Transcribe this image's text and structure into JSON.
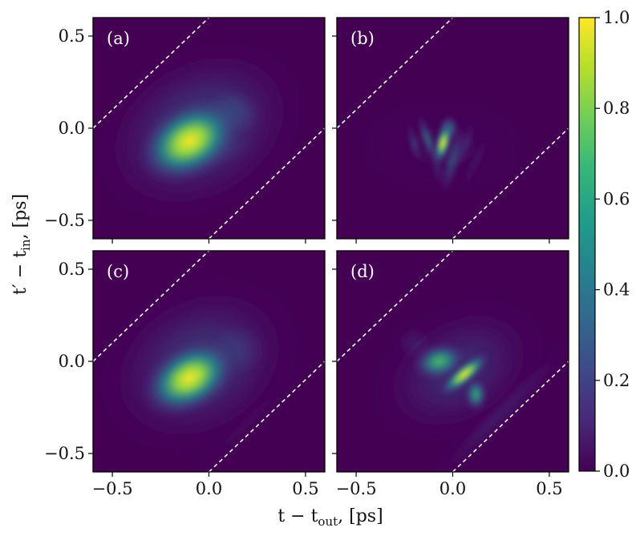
{
  "chart_data": {
    "type": "heatmap",
    "colormap": "viridis",
    "colors": {
      "background": "#440154",
      "viridis_stops": [
        "#440154",
        "#482878",
        "#3e4989",
        "#31688e",
        "#26828e",
        "#1f9e89",
        "#35b779",
        "#6ece58",
        "#b5de2b",
        "#fde725"
      ]
    },
    "xlabel": "t − t",
    "xlabel_sub": "out",
    "xlabel_unit": ", [ps]",
    "ylabel": "t′ − t",
    "ylabel_sub": "in",
    "ylabel_unit": ", [ps]",
    "xlim": [
      -0.6,
      0.6
    ],
    "ylim": [
      -0.6,
      0.6
    ],
    "x_ticks": [
      -0.5,
      0.0,
      0.5
    ],
    "x_tick_labels": [
      "−0.5",
      "0.0",
      "0.5"
    ],
    "y_ticks": [
      0.5,
      0.0,
      -0.5
    ],
    "y_tick_labels": [
      "0.5",
      "0.0",
      "−0.5"
    ],
    "colorbar": {
      "range": [
        0.0,
        1.0
      ],
      "ticks": [
        0.0,
        0.2,
        0.4,
        0.6,
        0.8,
        1.0
      ],
      "tick_labels": [
        "0.0",
        "0.2",
        "0.4",
        "0.6",
        "0.8",
        "1.0"
      ]
    },
    "dashed_lines": [
      {
        "x1": -0.6,
        "y1": 0.0,
        "x2": 0.0,
        "y2": 0.6
      },
      {
        "x1": 0.0,
        "y1": -0.6,
        "x2": 0.6,
        "y2": 0.0
      }
    ],
    "panels": [
      {
        "label": "(a)",
        "blobs": [
          {
            "x": -0.1,
            "y": -0.07,
            "sx": 0.14,
            "sy": 0.1,
            "angle": -30,
            "amp": 1.0
          },
          {
            "x": -0.05,
            "y": -0.01,
            "sx": 0.26,
            "sy": 0.2,
            "angle": -30,
            "amp": 0.45
          },
          {
            "x": 0.12,
            "y": 0.08,
            "sx": 0.08,
            "sy": 0.07,
            "angle": 0,
            "amp": 0.4
          },
          {
            "x": 0.06,
            "y": -0.12,
            "sx": 0.1,
            "sy": 0.05,
            "angle": -20,
            "amp": 0.25
          }
        ]
      },
      {
        "label": "(b)",
        "blobs": [
          {
            "x": -0.05,
            "y": -0.08,
            "sx": 0.02,
            "sy": 0.06,
            "angle": 15,
            "amp": 1.0
          },
          {
            "x": -0.02,
            "y": 0.0,
            "sx": 0.025,
            "sy": 0.035,
            "angle": 0,
            "amp": 0.6
          },
          {
            "x": -0.13,
            "y": -0.06,
            "sx": 0.015,
            "sy": 0.07,
            "angle": -20,
            "amp": 0.55
          },
          {
            "x": 0.0,
            "y": -0.17,
            "sx": 0.02,
            "sy": 0.1,
            "angle": 15,
            "amp": 0.45
          },
          {
            "x": -0.2,
            "y": -0.08,
            "sx": 0.013,
            "sy": 0.06,
            "angle": -15,
            "amp": 0.38
          },
          {
            "x": 0.06,
            "y": -0.1,
            "sx": 0.015,
            "sy": 0.08,
            "angle": 20,
            "amp": 0.32
          },
          {
            "x": -0.08,
            "y": -0.2,
            "sx": 0.015,
            "sy": 0.07,
            "angle": -10,
            "amp": 0.3
          },
          {
            "x": 0.12,
            "y": -0.18,
            "sx": 0.012,
            "sy": 0.09,
            "angle": 25,
            "amp": 0.22
          },
          {
            "x": -0.05,
            "y": -0.1,
            "sx": 0.2,
            "sy": 0.12,
            "angle": 0,
            "amp": 0.12
          }
        ]
      },
      {
        "label": "(c)",
        "blobs": [
          {
            "x": -0.1,
            "y": -0.09,
            "sx": 0.13,
            "sy": 0.09,
            "angle": -30,
            "amp": 1.0
          },
          {
            "x": -0.05,
            "y": -0.02,
            "sx": 0.25,
            "sy": 0.2,
            "angle": -30,
            "amp": 0.42
          },
          {
            "x": 0.15,
            "y": 0.06,
            "sx": 0.08,
            "sy": 0.08,
            "angle": 0,
            "amp": 0.3
          },
          {
            "x": 0.2,
            "y": -0.33,
            "sx": 0.2,
            "sy": 0.025,
            "angle": -45,
            "amp": 0.12
          }
        ]
      },
      {
        "label": "(d)",
        "blobs": [
          {
            "x": -0.07,
            "y": 0.0,
            "sx": 0.07,
            "sy": 0.05,
            "angle": -15,
            "amp": 0.75
          },
          {
            "x": 0.06,
            "y": -0.07,
            "sx": 0.08,
            "sy": 0.025,
            "angle": -40,
            "amp": 1.0
          },
          {
            "x": 0.12,
            "y": -0.18,
            "sx": 0.03,
            "sy": 0.045,
            "angle": 0,
            "amp": 0.7
          },
          {
            "x": 0.03,
            "y": -0.05,
            "sx": 0.22,
            "sy": 0.16,
            "angle": -30,
            "amp": 0.35
          },
          {
            "x": 0.25,
            "y": -0.28,
            "sx": 0.25,
            "sy": 0.03,
            "angle": -45,
            "amp": 0.25
          },
          {
            "x": -0.2,
            "y": 0.1,
            "sx": 0.05,
            "sy": 0.05,
            "angle": 0,
            "amp": 0.25
          }
        ]
      }
    ]
  }
}
